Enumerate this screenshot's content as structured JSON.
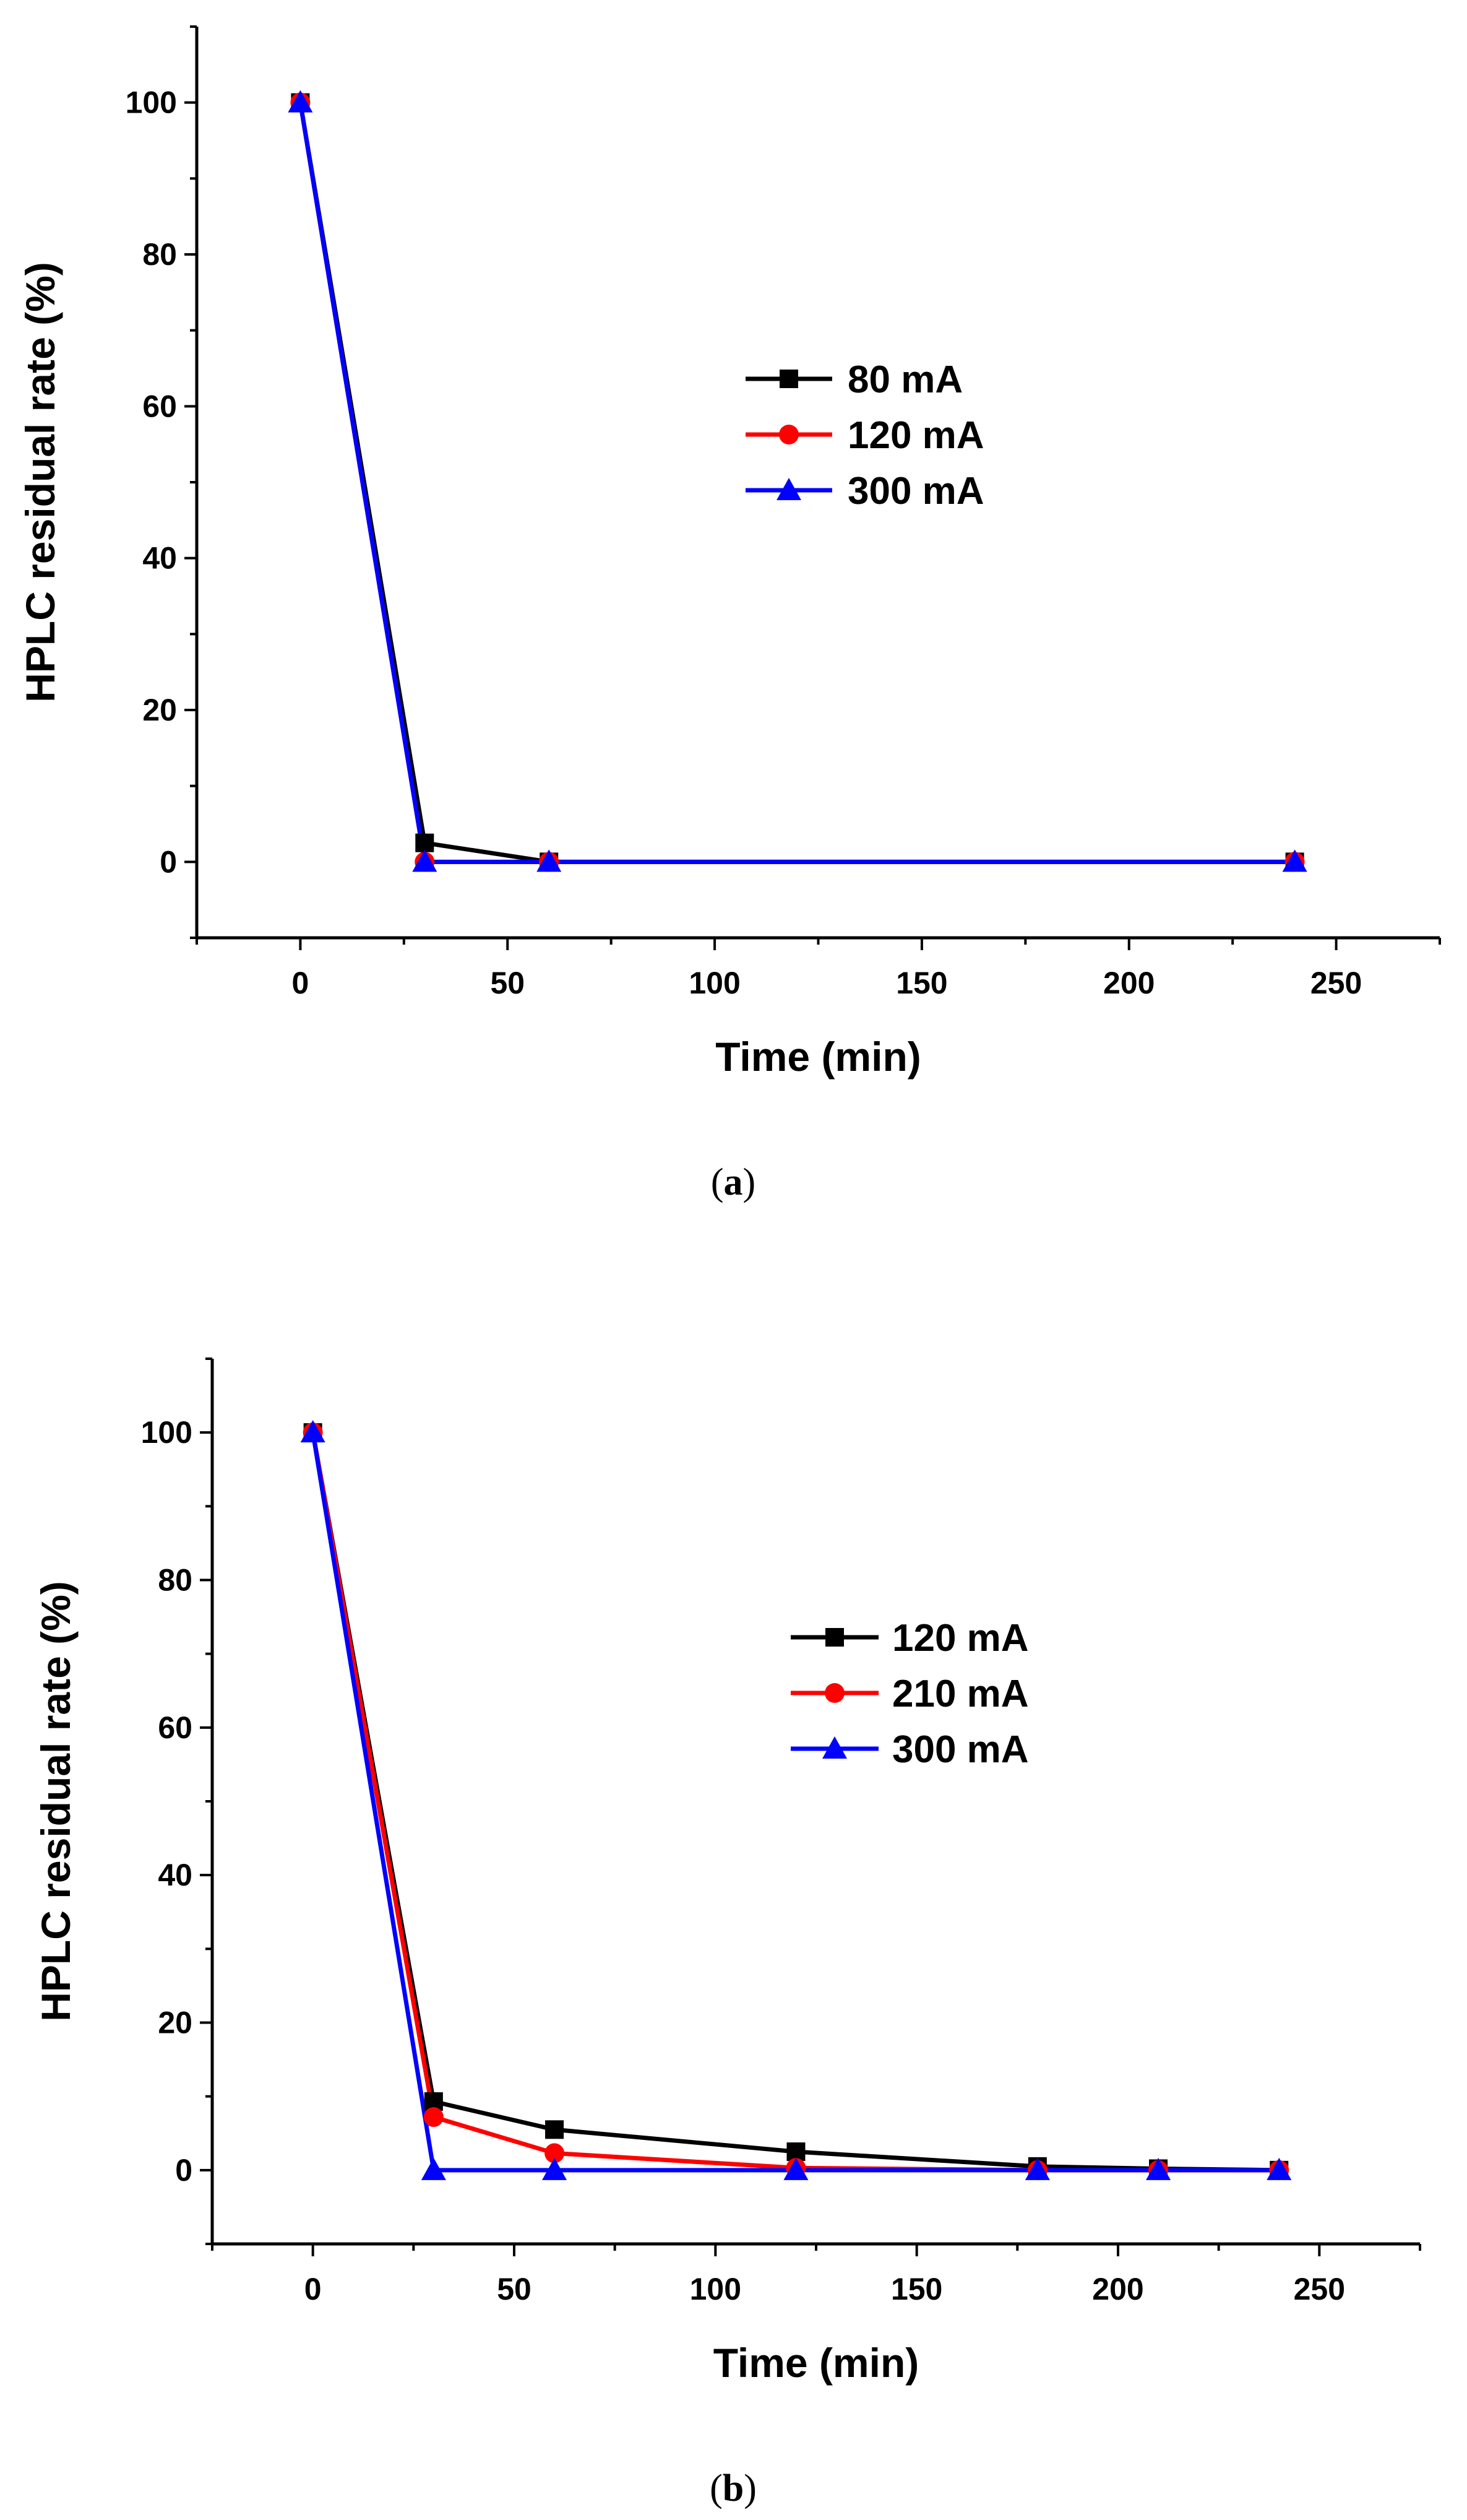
{
  "chart_data": [
    {
      "type": "line",
      "panel": "a",
      "caption": {
        "open": "(",
        "letter": "a",
        "close": ")"
      },
      "xlabel": "Time (min)",
      "ylabel": "HPLC residual rate (%)",
      "xlim": [
        -25,
        275
      ],
      "ylim": [
        -10,
        110
      ],
      "xticks": [
        0,
        50,
        100,
        150,
        200,
        250
      ],
      "yticks": [
        0,
        20,
        40,
        60,
        80,
        100
      ],
      "legend_position": "center-right",
      "series": [
        {
          "name": "80 mA",
          "color": "#000000",
          "marker": "square",
          "x": [
            0,
            30,
            60,
            240
          ],
          "y": [
            100,
            2.5,
            0,
            0
          ]
        },
        {
          "name": "120 mA",
          "color": "#ff0000",
          "marker": "circle",
          "x": [
            0,
            30,
            60,
            240
          ],
          "y": [
            100,
            0,
            0,
            0
          ]
        },
        {
          "name": "300 mA",
          "color": "#0000ff",
          "marker": "triangle",
          "x": [
            0,
            30,
            60,
            240
          ],
          "y": [
            100,
            0,
            0,
            0
          ]
        }
      ]
    },
    {
      "type": "line",
      "panel": "b",
      "caption": {
        "open": "(",
        "letter": "b",
        "close": ")"
      },
      "xlabel": "Time (min)",
      "ylabel": "HPLC residual rate (%)",
      "xlim": [
        -25,
        275
      ],
      "ylim": [
        -10,
        110
      ],
      "xticks": [
        0,
        50,
        100,
        150,
        200,
        250
      ],
      "yticks": [
        0,
        20,
        40,
        60,
        80,
        100
      ],
      "legend_position": "center-right",
      "series": [
        {
          "name": "120 mA",
          "color": "#000000",
          "marker": "square",
          "x": [
            0,
            30,
            60,
            120,
            180,
            210,
            240
          ],
          "y": [
            100,
            9.3,
            5.5,
            2.5,
            0.5,
            0.2,
            0
          ]
        },
        {
          "name": "210 mA",
          "color": "#ff0000",
          "marker": "circle",
          "x": [
            0,
            30,
            60,
            120,
            180,
            210,
            240
          ],
          "y": [
            100,
            7.2,
            2.3,
            0.3,
            0,
            0,
            0
          ]
        },
        {
          "name": "300 mA",
          "color": "#0000ff",
          "marker": "triangle",
          "x": [
            0,
            30,
            60,
            120,
            180,
            210,
            240
          ],
          "y": [
            100,
            0,
            0,
            0,
            0,
            0,
            0
          ]
        }
      ]
    }
  ]
}
